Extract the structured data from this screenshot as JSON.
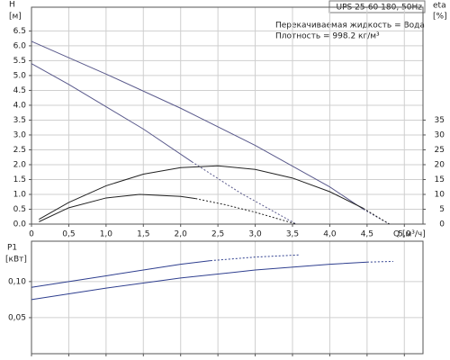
{
  "chart_data": [
    {
      "type": "line",
      "title": "UPS 25-60 180, 50Hz",
      "annotations": [
        "Перекачиваемая жидкость = Вода",
        "Плотность = 998.2 кг/м³"
      ],
      "ylabel": "H",
      "yunit": "[м]",
      "y2label": "eta",
      "y2unit": "[%]",
      "xlabel": "Q [м³/ч]",
      "xlim": [
        0,
        5.25
      ],
      "xticks": [
        0,
        {
          "value": 0.5,
          "label": "0,5"
        },
        {
          "value": 1,
          "label": "1,0"
        },
        {
          "value": 1.5,
          "label": "1,5"
        },
        {
          "value": 2,
          "label": "2,0"
        },
        {
          "value": 2.5,
          "label": "2,5"
        },
        {
          "value": 3,
          "label": "3,0"
        },
        {
          "value": 3.5,
          "label": "3,5"
        },
        {
          "value": 4,
          "label": "4,0"
        },
        {
          "value": 4.5,
          "label": "4,5"
        },
        {
          "value": 5,
          "label": "5,0"
        }
      ],
      "show_xtick_labels": true,
      "ylim": [
        0,
        7.3
      ],
      "yticks": [
        {
          "value": 0,
          "label": "0.0"
        },
        0.5,
        {
          "value": 1,
          "label": "1.0"
        },
        1.5,
        {
          "value": 2,
          "label": "2.0"
        },
        2.5,
        {
          "value": 3,
          "label": "3.0"
        },
        3.5,
        {
          "value": 4,
          "label": "4.0"
        },
        4.5,
        {
          "value": 5,
          "label": "5.0"
        },
        5.5,
        {
          "value": 6,
          "label": "6.0"
        },
        6.5
      ],
      "y2lim": [
        0,
        73
      ],
      "y2ticks": [
        0,
        5,
        10,
        15,
        20,
        25,
        30,
        35
      ],
      "grid": true,
      "series": [
        {
          "color": "#5a5a8c",
          "dashed": false,
          "x": [
            0,
            1,
            2,
            3,
            4,
            4.45
          ],
          "values": [
            6.15,
            5.05,
            3.9,
            2.65,
            1.25,
            0.5
          ]
        },
        {
          "color": "#5a5a8c",
          "dashed": true,
          "x": [
            4.45,
            4.8
          ],
          "values": [
            0.5,
            0
          ]
        },
        {
          "color": "#5a5a8c",
          "dashed": false,
          "x": [
            0,
            0.5,
            1,
            1.5,
            2.15
          ],
          "values": [
            5.4,
            4.7,
            3.95,
            3.2,
            2.1
          ]
        },
        {
          "color": "#5a5a8c",
          "dashed": true,
          "x": [
            2.15,
            2.8,
            3.55
          ],
          "values": [
            2.1,
            1.05,
            0
          ]
        },
        {
          "color": "#222222",
          "dashed": false,
          "axis": "y2",
          "x": [
            0.1,
            0.5,
            1,
            1.5,
            2,
            2.5,
            3,
            3.5,
            4,
            4.45
          ],
          "values": [
            1.6,
            7.3,
            12.9,
            16.8,
            19,
            19.6,
            18.4,
            15.5,
            10.9,
            5.3
          ]
        },
        {
          "color": "#222222",
          "dashed": true,
          "axis": "y2",
          "x": [
            4.45,
            4.8
          ],
          "values": [
            5.3,
            0
          ]
        },
        {
          "color": "#222222",
          "dashed": false,
          "axis": "y2",
          "x": [
            0.1,
            0.5,
            1,
            1.45,
            2,
            2.2
          ],
          "values": [
            0.8,
            5.5,
            8.8,
            10,
            9.3,
            8.6
          ]
        },
        {
          "color": "#222222",
          "dashed": true,
          "axis": "y2",
          "x": [
            2.2,
            2.6,
            3,
            3.55
          ],
          "values": [
            8.6,
            6.5,
            4,
            0
          ]
        }
      ]
    },
    {
      "type": "line",
      "ylabel": "P1",
      "yunit": "[кВт]",
      "xlim": [
        0,
        5.25
      ],
      "xticks": [
        0,
        0.5,
        1,
        1.5,
        2,
        2.5,
        3,
        3.5,
        4,
        4.5,
        5
      ],
      "show_xtick_labels": false,
      "ylim": [
        0,
        0.156
      ],
      "yticks": [
        {
          "value": 0.05,
          "label": "0,05"
        },
        {
          "value": 0.1,
          "label": "0,10"
        }
      ],
      "grid": true,
      "series": [
        {
          "color": "#2f3f8f",
          "dashed": false,
          "x": [
            0,
            0.5,
            1,
            1.5,
            2,
            2.4
          ],
          "values": [
            0.092,
            0.1,
            0.108,
            0.116,
            0.124,
            0.129
          ]
        },
        {
          "color": "#2f3f8f",
          "dashed": true,
          "x": [
            2.4,
            3,
            3.6
          ],
          "values": [
            0.129,
            0.134,
            0.137
          ]
        },
        {
          "color": "#2f3f8f",
          "dashed": false,
          "x": [
            0,
            1,
            2,
            3,
            4,
            4.5
          ],
          "values": [
            0.075,
            0.091,
            0.105,
            0.116,
            0.124,
            0.127
          ]
        },
        {
          "color": "#2f3f8f",
          "dashed": true,
          "x": [
            4.5,
            4.85
          ],
          "values": [
            0.127,
            0.128
          ]
        }
      ]
    }
  ]
}
